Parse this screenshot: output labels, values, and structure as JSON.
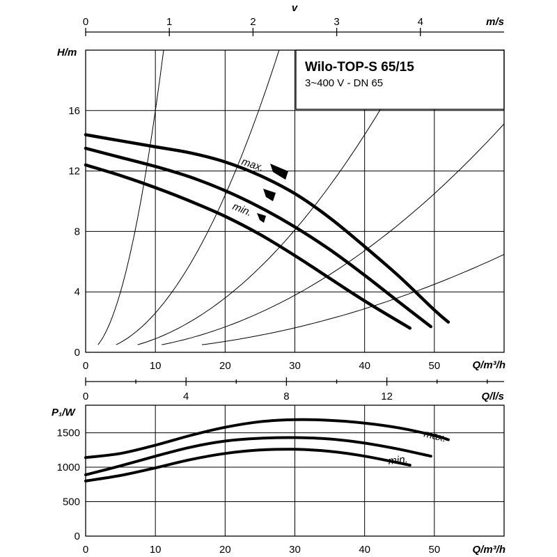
{
  "header": {
    "title": "Wilo-TOP-S 65/15",
    "subtitle": "3~400 V - DN 65"
  },
  "chart_data": [
    {
      "type": "line",
      "name": "head-curve",
      "ylabel": "H/m",
      "xlabel": "Q/m³/h",
      "xlim": [
        0,
        60
      ],
      "ylim": [
        0,
        20
      ],
      "x_ticks": [
        0,
        10,
        20,
        30,
        40,
        50
      ],
      "y_ticks": [
        0,
        4,
        8,
        12,
        16
      ],
      "grid": true,
      "velocity_axis": {
        "label": "v",
        "unit": "m/s",
        "ticks": [
          0,
          1,
          2,
          3,
          4
        ],
        "max": 5
      },
      "series": [
        {
          "name": "max.",
          "x": [
            0,
            5,
            10,
            15,
            20,
            25,
            30,
            35,
            40,
            45,
            50,
            52
          ],
          "y": [
            14.4,
            14.0,
            13.6,
            13.2,
            12.6,
            11.7,
            10.5,
            8.9,
            7.0,
            5.0,
            2.8,
            2.0
          ]
        },
        {
          "name": "",
          "x": [
            0,
            5,
            10,
            15,
            20,
            25,
            30,
            35,
            40,
            45,
            49.5
          ],
          "y": [
            13.5,
            12.9,
            12.3,
            11.6,
            10.7,
            9.6,
            8.3,
            6.8,
            5.1,
            3.3,
            1.7
          ]
        },
        {
          "name": "min.",
          "x": [
            0,
            5,
            10,
            15,
            20,
            25,
            30,
            35,
            40,
            46.5
          ],
          "y": [
            12.4,
            11.7,
            10.9,
            10.0,
            9.0,
            7.8,
            6.4,
            4.9,
            3.4,
            1.6
          ]
        }
      ],
      "system_curve_coeffs": [
        0.16,
        0.026,
        0.009,
        0.0042,
        0.0018
      ]
    },
    {
      "type": "line",
      "name": "power-curve",
      "ylabel": "P₁/W",
      "xlabel": "Q/m³/h",
      "xlim": [
        0,
        60
      ],
      "ylim": [
        0,
        1900
      ],
      "x_ticks": [
        0,
        10,
        20,
        30,
        40,
        50
      ],
      "y_ticks": [
        0,
        500,
        1000,
        1500
      ],
      "grid": true,
      "flow_ls_axis": {
        "unit": "Q/l/s",
        "ticks": [
          0,
          4,
          8,
          12
        ],
        "max": 16.67
      },
      "series": [
        {
          "name": "max.",
          "x": [
            0,
            5,
            10,
            15,
            20,
            25,
            30,
            35,
            40,
            45,
            50,
            52
          ],
          "y": [
            1140,
            1200,
            1320,
            1460,
            1580,
            1660,
            1690,
            1680,
            1640,
            1570,
            1460,
            1400
          ]
        },
        {
          "name": "",
          "x": [
            0,
            5,
            10,
            15,
            20,
            25,
            30,
            35,
            40,
            45,
            49.5
          ],
          "y": [
            890,
            1020,
            1160,
            1290,
            1380,
            1420,
            1430,
            1410,
            1350,
            1260,
            1160
          ]
        },
        {
          "name": "min.",
          "x": [
            0,
            5,
            10,
            15,
            20,
            25,
            30,
            35,
            40,
            46.5
          ],
          "y": [
            800,
            880,
            990,
            1110,
            1200,
            1250,
            1260,
            1230,
            1160,
            1030
          ]
        }
      ]
    }
  ]
}
